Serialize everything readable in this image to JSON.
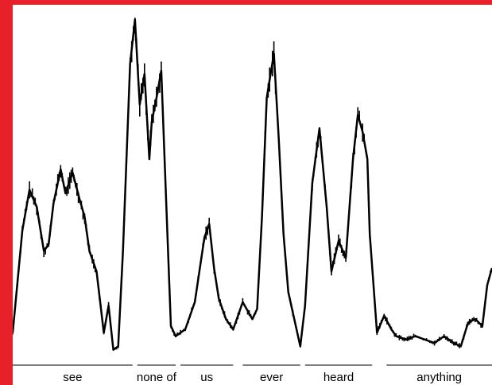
{
  "chart_data": {
    "type": "line",
    "title": "",
    "xlabel": "",
    "ylabel": "",
    "grid": false,
    "legend": "none",
    "line_color": "#000000",
    "ylim": [
      0,
      1
    ],
    "xlim": [
      0,
      1
    ],
    "words": [
      {
        "text": "see",
        "start": 0.0,
        "end": 0.25
      },
      {
        "text": "none of",
        "start": 0.26,
        "end": 0.34
      },
      {
        "text": "us",
        "start": 0.35,
        "end": 0.46
      },
      {
        "text": "ever",
        "start": 0.48,
        "end": 0.6
      },
      {
        "text": "heard",
        "start": 0.61,
        "end": 0.75
      },
      {
        "text": "anything",
        "start": 0.78,
        "end": 1.0
      }
    ],
    "envelope": {
      "x": [
        0.0,
        0.02,
        0.035,
        0.05,
        0.065,
        0.075,
        0.085,
        0.1,
        0.11,
        0.125,
        0.14,
        0.15,
        0.16,
        0.175,
        0.19,
        0.2,
        0.21,
        0.22,
        0.23,
        0.245,
        0.255,
        0.265,
        0.275,
        0.285,
        0.29,
        0.3,
        0.31,
        0.32,
        0.33,
        0.34,
        0.36,
        0.38,
        0.4,
        0.41,
        0.42,
        0.43,
        0.445,
        0.46,
        0.48,
        0.5,
        0.51,
        0.52,
        0.53,
        0.545,
        0.555,
        0.565,
        0.575,
        0.6,
        0.61,
        0.625,
        0.64,
        0.655,
        0.665,
        0.68,
        0.695,
        0.71,
        0.72,
        0.73,
        0.74,
        0.745,
        0.76,
        0.775,
        0.79,
        0.8,
        0.82,
        0.84,
        0.86,
        0.88,
        0.9,
        0.92,
        0.935,
        0.95,
        0.965,
        0.98,
        0.99,
        1.0
      ],
      "y": [
        0.06,
        0.36,
        0.48,
        0.43,
        0.3,
        0.32,
        0.44,
        0.54,
        0.47,
        0.53,
        0.45,
        0.4,
        0.3,
        0.24,
        0.06,
        0.14,
        0.01,
        0.02,
        0.3,
        0.85,
        0.98,
        0.73,
        0.82,
        0.57,
        0.68,
        0.75,
        0.83,
        0.45,
        0.08,
        0.05,
        0.07,
        0.15,
        0.34,
        0.38,
        0.25,
        0.16,
        0.1,
        0.07,
        0.15,
        0.1,
        0.13,
        0.4,
        0.75,
        0.88,
        0.63,
        0.35,
        0.18,
        0.02,
        0.14,
        0.5,
        0.66,
        0.43,
        0.24,
        0.33,
        0.28,
        0.57,
        0.7,
        0.65,
        0.57,
        0.35,
        0.06,
        0.11,
        0.07,
        0.05,
        0.04,
        0.05,
        0.04,
        0.03,
        0.05,
        0.03,
        0.02,
        0.09,
        0.1,
        0.08,
        0.2,
        0.25
      ]
    }
  }
}
